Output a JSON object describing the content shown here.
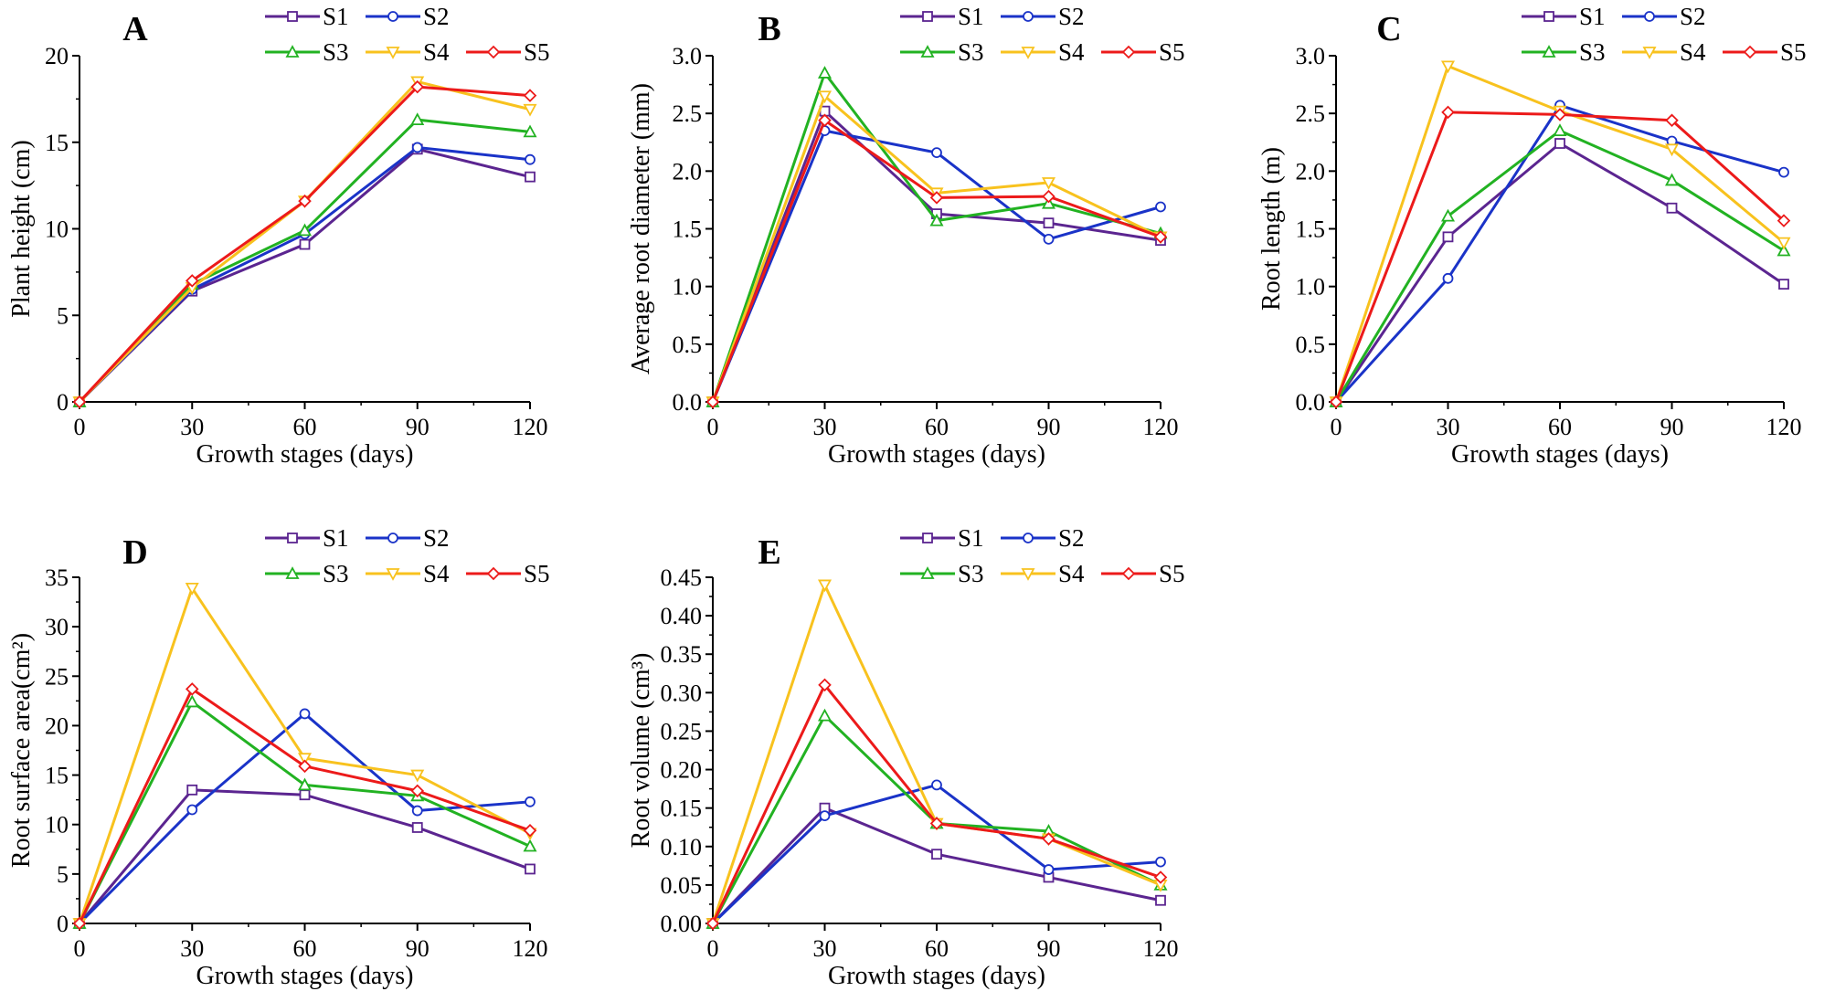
{
  "figure": {
    "series_names": [
      "S1",
      "S2",
      "S3",
      "S4",
      "S5"
    ],
    "series_colors": {
      "S1": "#5b2590",
      "S2": "#1a33c8",
      "S3": "#22b222",
      "S4": "#f8c21e",
      "S5": "#ec1a1a"
    },
    "series_markers": {
      "S1": "square",
      "S2": "circle",
      "S3": "triangle-up",
      "S4": "triangle-down",
      "S5": "diamond"
    }
  },
  "chart_data": [
    {
      "panel": "A",
      "type": "line",
      "title": "A",
      "xlabel": "Growth stages (days)",
      "ylabel": "Plant height (cm)",
      "x": [
        0,
        30,
        60,
        90,
        120
      ],
      "xlim": [
        0,
        120
      ],
      "xticks": [
        "0",
        "30",
        "60",
        "90",
        "120"
      ],
      "ylim": [
        0,
        20
      ],
      "yticks": [
        "0",
        "5",
        "10",
        "15",
        "20"
      ],
      "legend": "top",
      "series": [
        {
          "name": "S1",
          "values": [
            0,
            6.4,
            9.1,
            14.6,
            13.0
          ]
        },
        {
          "name": "S2",
          "values": [
            0,
            6.5,
            9.7,
            14.7,
            14.0
          ]
        },
        {
          "name": "S3",
          "values": [
            0,
            6.8,
            9.9,
            16.3,
            15.6
          ]
        },
        {
          "name": "S4",
          "values": [
            0,
            6.6,
            11.6,
            18.5,
            16.9
          ]
        },
        {
          "name": "S5",
          "values": [
            0,
            7.0,
            11.6,
            18.2,
            17.7
          ]
        }
      ]
    },
    {
      "panel": "B",
      "type": "line",
      "title": "B",
      "xlabel": "Growth stages (days)",
      "ylabel": "Average root diameter (mm)",
      "x": [
        0,
        30,
        60,
        90,
        120
      ],
      "xlim": [
        0,
        120
      ],
      "xticks": [
        "0",
        "30",
        "60",
        "90",
        "120"
      ],
      "ylim": [
        0,
        3
      ],
      "yticks": [
        "0.0",
        "0.5",
        "1.0",
        "1.5",
        "2.0",
        "2.5",
        "3.0"
      ],
      "legend": "top",
      "series": [
        {
          "name": "S1",
          "values": [
            0,
            2.52,
            1.63,
            1.55,
            1.4
          ]
        },
        {
          "name": "S2",
          "values": [
            0,
            2.35,
            2.16,
            1.41,
            1.69
          ]
        },
        {
          "name": "S3",
          "values": [
            0,
            2.85,
            1.57,
            1.72,
            1.46
          ]
        },
        {
          "name": "S4",
          "values": [
            0,
            2.65,
            1.81,
            1.9,
            1.43
          ]
        },
        {
          "name": "S5",
          "values": [
            0,
            2.44,
            1.77,
            1.78,
            1.43
          ]
        }
      ]
    },
    {
      "panel": "C",
      "type": "line",
      "title": "C",
      "xlabel": "Growth stages (days)",
      "ylabel": "Root length (m)",
      "x": [
        0,
        30,
        60,
        90,
        120
      ],
      "xlim": [
        0,
        120
      ],
      "xticks": [
        "0",
        "30",
        "60",
        "90",
        "120"
      ],
      "ylim": [
        0,
        3
      ],
      "yticks": [
        "0.0",
        "0.5",
        "1.0",
        "1.5",
        "2.0",
        "2.5",
        "3.0"
      ],
      "legend": "top",
      "series": [
        {
          "name": "S1",
          "values": [
            0,
            1.43,
            2.24,
            1.68,
            1.02
          ]
        },
        {
          "name": "S2",
          "values": [
            0,
            1.07,
            2.57,
            2.26,
            1.99
          ]
        },
        {
          "name": "S3",
          "values": [
            0,
            1.61,
            2.35,
            1.92,
            1.31
          ]
        },
        {
          "name": "S4",
          "values": [
            0,
            2.91,
            2.52,
            2.19,
            1.38
          ]
        },
        {
          "name": "S5",
          "values": [
            0,
            2.51,
            2.49,
            2.44,
            1.57
          ]
        }
      ]
    },
    {
      "panel": "D",
      "type": "line",
      "title": "D",
      "xlabel": "Growth stages (days)",
      "ylabel": "Root surface area(cm²)",
      "x": [
        0,
        30,
        60,
        90,
        120
      ],
      "xlim": [
        0,
        120
      ],
      "xticks": [
        "0",
        "30",
        "60",
        "90",
        "120"
      ],
      "ylim": [
        0,
        35
      ],
      "yticks": [
        "0",
        "5",
        "10",
        "15",
        "20",
        "25",
        "30",
        "35"
      ],
      "legend": "top",
      "series": [
        {
          "name": "S1",
          "values": [
            0,
            13.5,
            13.0,
            9.7,
            5.5
          ]
        },
        {
          "name": "S2",
          "values": [
            0,
            11.5,
            21.2,
            11.4,
            12.3
          ]
        },
        {
          "name": "S3",
          "values": [
            0,
            22.4,
            14.0,
            12.9,
            7.8
          ]
        },
        {
          "name": "S4",
          "values": [
            0,
            33.9,
            16.7,
            15.0,
            9.1
          ]
        },
        {
          "name": "S5",
          "values": [
            0,
            23.7,
            15.9,
            13.4,
            9.4
          ]
        }
      ]
    },
    {
      "panel": "E",
      "type": "line",
      "title": "E",
      "xlabel": "Growth stages (days)",
      "ylabel": "Root volume (cm³)",
      "x": [
        0,
        30,
        60,
        90,
        120
      ],
      "xlim": [
        0,
        120
      ],
      "xticks": [
        "0",
        "30",
        "60",
        "90",
        "120"
      ],
      "ylim": [
        0,
        0.45
      ],
      "yticks": [
        "0.00",
        "0.05",
        "0.10",
        "0.15",
        "0.20",
        "0.25",
        "0.30",
        "0.35",
        "0.40",
        "0.45"
      ],
      "legend": "top",
      "series": [
        {
          "name": "S1",
          "values": [
            0,
            0.15,
            0.09,
            0.06,
            0.03
          ]
        },
        {
          "name": "S2",
          "values": [
            0,
            0.14,
            0.18,
            0.07,
            0.08
          ]
        },
        {
          "name": "S3",
          "values": [
            0,
            0.27,
            0.13,
            0.12,
            0.05
          ]
        },
        {
          "name": "S4",
          "values": [
            0,
            0.44,
            0.13,
            0.11,
            0.05
          ]
        },
        {
          "name": "S5",
          "values": [
            0,
            0.31,
            0.13,
            0.11,
            0.06
          ]
        }
      ]
    }
  ]
}
